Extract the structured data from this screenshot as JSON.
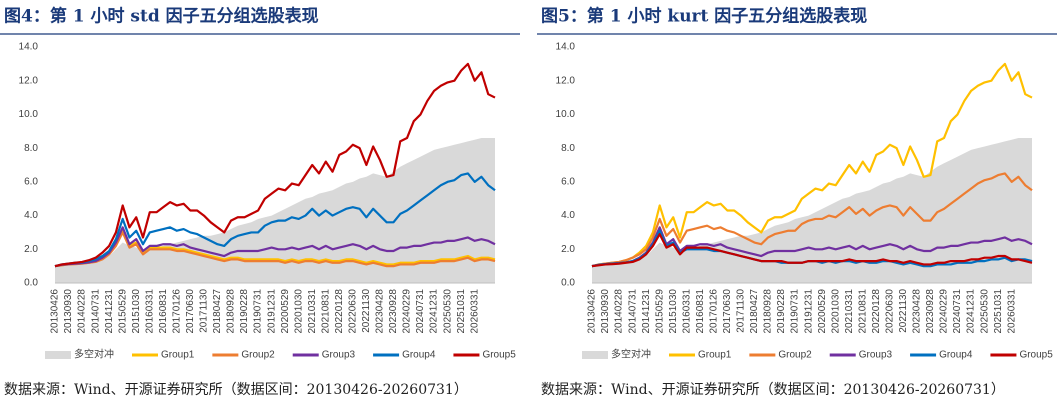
{
  "chart_data": [
    {
      "type": "line",
      "title": "图4：第 1 小时 std 因子五分组选股表现",
      "source": "数据来源：Wind、开源证券研究所（数据区间：20130426-20260731）",
      "categories": [
        "20130426",
        null,
        "20130930",
        null,
        "20140228",
        null,
        "20140731",
        null,
        "20141231",
        null,
        "20150529",
        null,
        "20151030",
        null,
        "20160331",
        null,
        "20160831",
        null,
        "20170126",
        null,
        "20170630",
        null,
        "20171130",
        null,
        "20180427",
        null,
        "20180928",
        null,
        "20190228",
        null,
        "20190731",
        null,
        "20191231",
        null,
        "20200529",
        null,
        "20201030",
        null,
        "20210331",
        null,
        "20210831",
        null,
        "20220128",
        null,
        "20220630",
        null,
        "20221130",
        null,
        "20230428",
        null,
        "20230928",
        null,
        "20240229",
        null,
        "20240731",
        null,
        "20241231",
        null,
        "20250530",
        null,
        "20251031",
        null,
        "20260331",
        null,
        null,
        null
      ],
      "ylim": [
        0,
        14
      ],
      "yticks": [
        {
          "value": 0,
          "label": "0.0"
        },
        {
          "value": 2,
          "label": "2.0"
        },
        {
          "value": 4,
          "label": "4.0"
        },
        {
          "value": 6,
          "label": "6.0"
        },
        {
          "value": 8,
          "label": "8.0"
        },
        {
          "value": 10,
          "label": "10.0"
        },
        {
          "value": 12,
          "label": "12.0"
        },
        {
          "value": 14,
          "label": "14.0"
        }
      ],
      "legend": "bottom",
      "series": [
        {
          "name": "多空对冲",
          "color": "#d9d9d9",
          "area": true,
          "values": [
            1.0,
            1.05,
            1.1,
            1.15,
            1.2,
            1.25,
            1.3,
            1.4,
            1.6,
            2.0,
            2.4,
            2.2,
            2.1,
            1.9,
            2.0,
            2.1,
            2.2,
            2.3,
            2.4,
            2.5,
            2.6,
            2.7,
            2.8,
            2.8,
            2.9,
            3.0,
            3.2,
            3.4,
            3.5,
            3.6,
            3.8,
            3.9,
            4.0,
            4.2,
            4.4,
            4.6,
            4.8,
            5.0,
            5.1,
            5.3,
            5.4,
            5.5,
            5.7,
            5.9,
            6.0,
            6.2,
            6.3,
            6.5,
            6.4,
            6.3,
            6.6,
            6.9,
            7.1,
            7.3,
            7.5,
            7.7,
            7.9,
            8.0,
            8.1,
            8.2,
            8.3,
            8.4,
            8.5,
            8.6,
            8.6,
            8.6
          ]
        },
        {
          "name": "Group1",
          "color": "#ffc000",
          "values": [
            1.0,
            1.06,
            1.1,
            1.13,
            1.16,
            1.2,
            1.27,
            1.45,
            1.75,
            2.3,
            3.1,
            2.2,
            2.4,
            1.8,
            2.1,
            2.1,
            2.1,
            2.1,
            2.0,
            2.0,
            1.9,
            1.8,
            1.7,
            1.6,
            1.5,
            1.4,
            1.5,
            1.5,
            1.4,
            1.4,
            1.4,
            1.4,
            1.4,
            1.4,
            1.3,
            1.4,
            1.3,
            1.4,
            1.4,
            1.3,
            1.4,
            1.3,
            1.3,
            1.4,
            1.4,
            1.3,
            1.2,
            1.3,
            1.2,
            1.1,
            1.1,
            1.2,
            1.2,
            1.2,
            1.3,
            1.3,
            1.3,
            1.4,
            1.4,
            1.4,
            1.5,
            1.6,
            1.4,
            1.5,
            1.5,
            1.4
          ]
        },
        {
          "name": "Group2",
          "color": "#ed7d31",
          "values": [
            1.0,
            1.05,
            1.1,
            1.12,
            1.15,
            1.2,
            1.25,
            1.4,
            1.7,
            2.2,
            3.0,
            2.1,
            2.3,
            1.7,
            2.0,
            2.0,
            2.0,
            2.0,
            1.9,
            1.9,
            1.8,
            1.7,
            1.6,
            1.5,
            1.4,
            1.3,
            1.4,
            1.4,
            1.3,
            1.3,
            1.3,
            1.3,
            1.3,
            1.3,
            1.2,
            1.3,
            1.2,
            1.3,
            1.3,
            1.2,
            1.3,
            1.2,
            1.2,
            1.3,
            1.3,
            1.2,
            1.1,
            1.2,
            1.1,
            1.0,
            1.0,
            1.1,
            1.1,
            1.1,
            1.2,
            1.2,
            1.2,
            1.3,
            1.3,
            1.3,
            1.4,
            1.5,
            1.3,
            1.4,
            1.4,
            1.3
          ]
        },
        {
          "name": "Group3",
          "color": "#7030a0",
          "values": [
            1.0,
            1.08,
            1.12,
            1.15,
            1.18,
            1.22,
            1.3,
            1.5,
            1.8,
            2.4,
            3.3,
            2.3,
            2.6,
            1.9,
            2.2,
            2.2,
            2.3,
            2.3,
            2.2,
            2.3,
            2.1,
            2.0,
            1.9,
            1.8,
            1.7,
            1.6,
            1.8,
            1.9,
            1.9,
            1.9,
            1.9,
            2.0,
            2.1,
            2.0,
            2.0,
            2.1,
            2.0,
            2.1,
            2.2,
            2.0,
            2.2,
            2.0,
            2.1,
            2.2,
            2.3,
            2.2,
            2.0,
            2.2,
            2.0,
            1.9,
            1.9,
            2.1,
            2.1,
            2.2,
            2.2,
            2.3,
            2.4,
            2.4,
            2.5,
            2.5,
            2.6,
            2.7,
            2.5,
            2.6,
            2.5,
            2.3
          ]
        },
        {
          "name": "Group4",
          "color": "#0070c0",
          "values": [
            1.0,
            1.1,
            1.15,
            1.2,
            1.22,
            1.3,
            1.4,
            1.6,
            1.9,
            2.6,
            3.8,
            2.7,
            3.1,
            2.3,
            3.0,
            3.1,
            3.2,
            3.3,
            3.1,
            3.2,
            3.0,
            2.9,
            2.7,
            2.5,
            2.3,
            2.2,
            2.6,
            2.8,
            2.9,
            3.0,
            3.0,
            3.4,
            3.6,
            3.7,
            3.7,
            3.9,
            3.8,
            4.0,
            4.4,
            4.0,
            4.3,
            4.0,
            4.2,
            4.4,
            4.5,
            4.4,
            3.9,
            4.4,
            4.0,
            3.6,
            3.6,
            4.1,
            4.3,
            4.6,
            4.9,
            5.2,
            5.5,
            5.8,
            6.0,
            6.1,
            6.4,
            6.5,
            6.0,
            6.3,
            5.8,
            5.5
          ]
        },
        {
          "name": "Group5",
          "color": "#c00000",
          "values": [
            1.0,
            1.1,
            1.15,
            1.2,
            1.25,
            1.35,
            1.5,
            1.8,
            2.2,
            3.0,
            4.6,
            3.3,
            3.9,
            2.7,
            4.2,
            4.2,
            4.5,
            4.8,
            4.6,
            4.7,
            4.3,
            4.3,
            4.0,
            3.6,
            3.3,
            3.0,
            3.7,
            3.9,
            3.9,
            4.1,
            4.3,
            5.0,
            5.3,
            5.6,
            5.5,
            5.9,
            5.8,
            6.4,
            7.0,
            6.5,
            7.2,
            6.6,
            7.6,
            7.8,
            8.2,
            8.0,
            7.0,
            8.1,
            7.3,
            6.3,
            6.4,
            8.4,
            8.6,
            9.6,
            10.0,
            10.8,
            11.4,
            11.7,
            11.9,
            12.0,
            12.6,
            13.0,
            12.0,
            12.5,
            11.2,
            11.0
          ]
        }
      ]
    },
    {
      "type": "line",
      "title": "图5：第 1 小时 kurt 因子五分组选股表现",
      "source": "数据来源：Wind、开源证券研究所（数据区间：20130426-20260731）",
      "categories": [
        "20130426",
        null,
        "20130930",
        null,
        "20140228",
        null,
        "20140731",
        null,
        "20141231",
        null,
        "20150529",
        null,
        "20151030",
        null,
        "20160331",
        null,
        "20160831",
        null,
        "20170126",
        null,
        "20170630",
        null,
        "20171130",
        null,
        "20180427",
        null,
        "20180928",
        null,
        "20190228",
        null,
        "20190731",
        null,
        "20191231",
        null,
        "20200529",
        null,
        "20201030",
        null,
        "20210331",
        null,
        "20210831",
        null,
        "20220128",
        null,
        "20220630",
        null,
        "20221130",
        null,
        "20230428",
        null,
        "20230928",
        null,
        "20240229",
        null,
        "20240731",
        null,
        "20241231",
        null,
        "20250530",
        null,
        "20251031",
        null,
        "20260331",
        null,
        null,
        null
      ],
      "ylim": [
        0,
        14
      ],
      "yticks": [
        {
          "value": 0,
          "label": "0.0"
        },
        {
          "value": 2,
          "label": "2.0"
        },
        {
          "value": 4,
          "label": "4.0"
        },
        {
          "value": 6,
          "label": "6.0"
        },
        {
          "value": 8,
          "label": "8.0"
        },
        {
          "value": 10,
          "label": "10.0"
        },
        {
          "value": 12,
          "label": "12.0"
        },
        {
          "value": 14,
          "label": "14.0"
        }
      ],
      "legend": "bottom",
      "series": [
        {
          "name": "多空对冲",
          "color": "#d9d9d9",
          "area": true,
          "values": [
            1.0,
            1.05,
            1.1,
            1.15,
            1.2,
            1.25,
            1.3,
            1.4,
            1.6,
            2.0,
            2.4,
            2.2,
            2.1,
            1.9,
            2.0,
            2.1,
            2.2,
            2.3,
            2.4,
            2.5,
            2.6,
            2.7,
            2.8,
            2.8,
            2.9,
            3.0,
            3.2,
            3.4,
            3.5,
            3.6,
            3.8,
            3.9,
            4.0,
            4.2,
            4.4,
            4.6,
            4.8,
            5.0,
            5.1,
            5.3,
            5.4,
            5.5,
            5.7,
            5.9,
            6.0,
            6.2,
            6.3,
            6.5,
            6.4,
            6.3,
            6.6,
            6.9,
            7.1,
            7.3,
            7.5,
            7.7,
            7.9,
            8.0,
            8.1,
            8.2,
            8.3,
            8.4,
            8.5,
            8.6,
            8.6,
            8.6
          ]
        },
        {
          "name": "Group1",
          "color": "#ffc000",
          "values": [
            1.0,
            1.1,
            1.15,
            1.2,
            1.25,
            1.35,
            1.5,
            1.8,
            2.2,
            3.0,
            4.6,
            3.3,
            3.9,
            2.7,
            4.2,
            4.2,
            4.5,
            4.8,
            4.6,
            4.7,
            4.3,
            4.3,
            4.0,
            3.6,
            3.3,
            3.0,
            3.7,
            3.9,
            3.9,
            4.1,
            4.3,
            5.0,
            5.3,
            5.6,
            5.5,
            5.9,
            5.8,
            6.4,
            7.0,
            6.5,
            7.2,
            6.6,
            7.6,
            7.8,
            8.2,
            8.0,
            7.0,
            8.1,
            7.3,
            6.3,
            6.4,
            8.4,
            8.6,
            9.6,
            10.0,
            10.8,
            11.4,
            11.7,
            11.9,
            12.0,
            12.6,
            13.0,
            12.0,
            12.5,
            11.2,
            11.0
          ]
        },
        {
          "name": "Group2",
          "color": "#ed7d31",
          "values": [
            1.0,
            1.1,
            1.15,
            1.2,
            1.25,
            1.35,
            1.5,
            1.7,
            2.0,
            2.7,
            3.8,
            2.8,
            3.2,
            2.4,
            3.1,
            3.2,
            3.3,
            3.4,
            3.2,
            3.3,
            3.1,
            3.0,
            2.8,
            2.6,
            2.4,
            2.3,
            2.7,
            2.9,
            3.0,
            3.1,
            3.1,
            3.5,
            3.7,
            3.8,
            3.8,
            4.0,
            3.9,
            4.2,
            4.5,
            4.1,
            4.4,
            4.0,
            4.3,
            4.5,
            4.6,
            4.5,
            4.0,
            4.5,
            4.1,
            3.7,
            3.7,
            4.2,
            4.4,
            4.7,
            5.0,
            5.3,
            5.6,
            5.9,
            6.1,
            6.2,
            6.4,
            6.5,
            6.0,
            6.3,
            5.8,
            5.5
          ]
        },
        {
          "name": "Group3",
          "color": "#7030a0",
          "values": [
            1.0,
            1.08,
            1.12,
            1.15,
            1.18,
            1.22,
            1.3,
            1.5,
            1.8,
            2.4,
            3.3,
            2.3,
            2.6,
            1.9,
            2.2,
            2.2,
            2.3,
            2.3,
            2.2,
            2.3,
            2.1,
            2.0,
            1.9,
            1.8,
            1.7,
            1.6,
            1.8,
            1.9,
            1.9,
            1.9,
            1.9,
            2.0,
            2.1,
            2.0,
            2.0,
            2.1,
            2.0,
            2.1,
            2.2,
            2.0,
            2.2,
            2.0,
            2.1,
            2.2,
            2.3,
            2.2,
            2.0,
            2.2,
            2.0,
            1.9,
            1.9,
            2.1,
            2.1,
            2.2,
            2.2,
            2.3,
            2.4,
            2.4,
            2.5,
            2.5,
            2.6,
            2.7,
            2.5,
            2.6,
            2.5,
            2.3
          ]
        },
        {
          "name": "Group4",
          "color": "#0070c0",
          "values": [
            1.0,
            1.08,
            1.12,
            1.15,
            1.18,
            1.22,
            1.3,
            1.45,
            1.75,
            2.3,
            3.1,
            2.2,
            2.4,
            1.8,
            2.0,
            2.0,
            2.0,
            2.0,
            1.9,
            1.9,
            1.8,
            1.7,
            1.6,
            1.5,
            1.4,
            1.3,
            1.3,
            1.3,
            1.2,
            1.2,
            1.2,
            1.2,
            1.3,
            1.3,
            1.2,
            1.3,
            1.2,
            1.3,
            1.3,
            1.2,
            1.3,
            1.2,
            1.2,
            1.3,
            1.3,
            1.2,
            1.1,
            1.2,
            1.1,
            1.0,
            1.0,
            1.1,
            1.1,
            1.1,
            1.2,
            1.2,
            1.2,
            1.3,
            1.3,
            1.4,
            1.4,
            1.5,
            1.3,
            1.4,
            1.4,
            1.3
          ]
        },
        {
          "name": "Group5",
          "color": "#c00000",
          "values": [
            1.0,
            1.05,
            1.1,
            1.12,
            1.15,
            1.2,
            1.25,
            1.4,
            1.7,
            2.2,
            2.9,
            2.1,
            2.3,
            1.7,
            2.1,
            2.1,
            2.1,
            2.1,
            2.0,
            1.9,
            1.8,
            1.7,
            1.6,
            1.5,
            1.4,
            1.3,
            1.3,
            1.3,
            1.3,
            1.2,
            1.2,
            1.2,
            1.3,
            1.3,
            1.3,
            1.3,
            1.3,
            1.3,
            1.4,
            1.3,
            1.3,
            1.3,
            1.3,
            1.4,
            1.3,
            1.3,
            1.2,
            1.3,
            1.2,
            1.1,
            1.1,
            1.2,
            1.2,
            1.3,
            1.3,
            1.3,
            1.4,
            1.4,
            1.5,
            1.5,
            1.6,
            1.6,
            1.4,
            1.4,
            1.3,
            1.2
          ]
        }
      ]
    }
  ]
}
